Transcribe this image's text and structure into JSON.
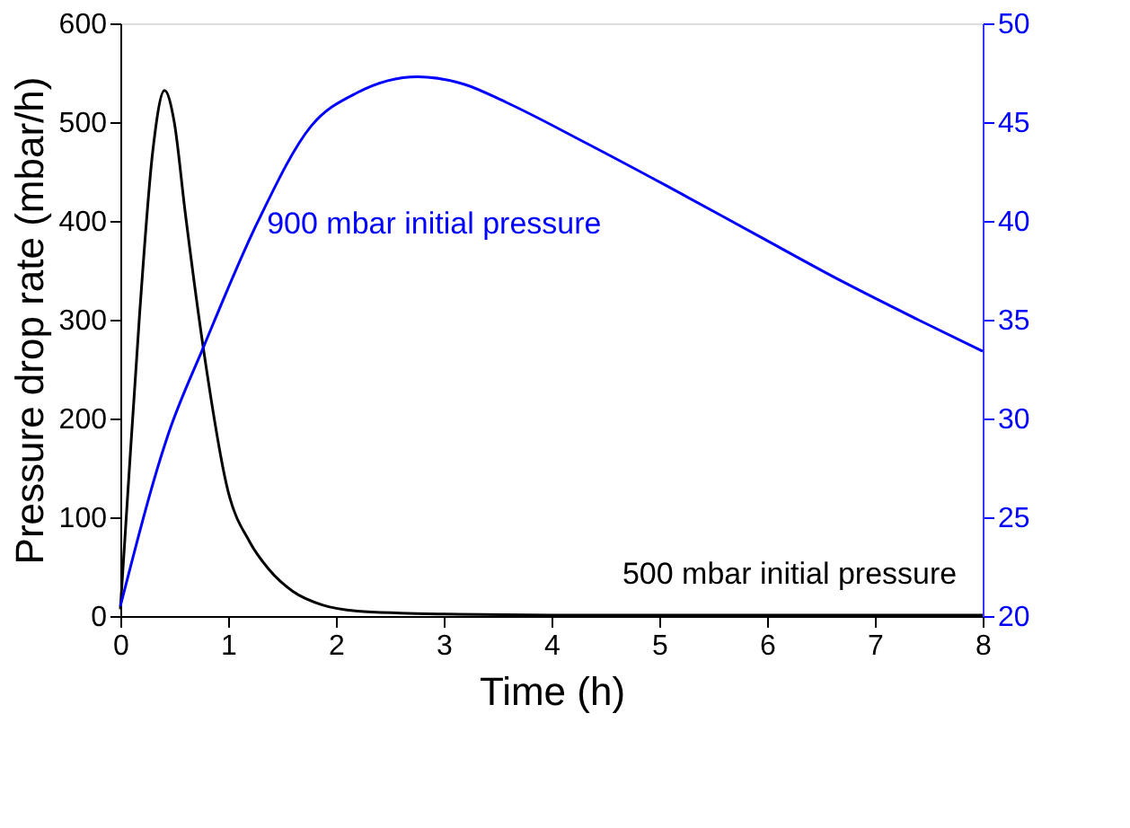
{
  "chart_data": {
    "type": "line",
    "xlabel": "Time (h)",
    "ylabel": "Pressure drop rate (mbar/h)",
    "xlim": [
      0,
      8
    ],
    "xticks": [
      0,
      1,
      2,
      3,
      4,
      5,
      6,
      7,
      8
    ],
    "ylim": [
      0,
      600
    ],
    "yticks": [
      0,
      100,
      200,
      300,
      400,
      500,
      600
    ],
    "y2lim": [
      20,
      50
    ],
    "y2ticks": [
      20,
      25,
      30,
      35,
      40,
      45,
      50
    ],
    "grid": false,
    "marker": "none",
    "line_style": "solid",
    "series": [
      {
        "name": "500 mbar initial pressure",
        "color": "#000000",
        "x": [
          0,
          0.07,
          0.18,
          0.3,
          0.41,
          0.5,
          0.6,
          0.77,
          1.0,
          1.2,
          1.38,
          1.6,
          1.88,
          2.2,
          2.6,
          3,
          4,
          5,
          6,
          7,
          8
        ],
        "values": [
          7,
          126,
          308,
          470,
          532,
          500,
          410,
          271,
          126,
          75,
          47,
          25,
          11,
          5,
          3,
          2,
          1,
          1,
          1,
          1,
          1
        ]
      },
      {
        "name": "900 mbar initial pressure",
        "color": "#0000ff",
        "axis": "y2",
        "x": [
          0,
          0.45,
          0.77,
          1.27,
          1.77,
          2.2,
          2.76,
          3.2,
          3.58,
          4.3,
          5.06,
          5.9,
          6.71,
          7.4,
          8.0
        ],
        "values": [
          20.5,
          29.3,
          33.6,
          39.9,
          44.8,
          46.5,
          47.3,
          46.9,
          46.0,
          44.0,
          41.8,
          39.3,
          36.9,
          35.0,
          33.4
        ]
      }
    ]
  }
}
